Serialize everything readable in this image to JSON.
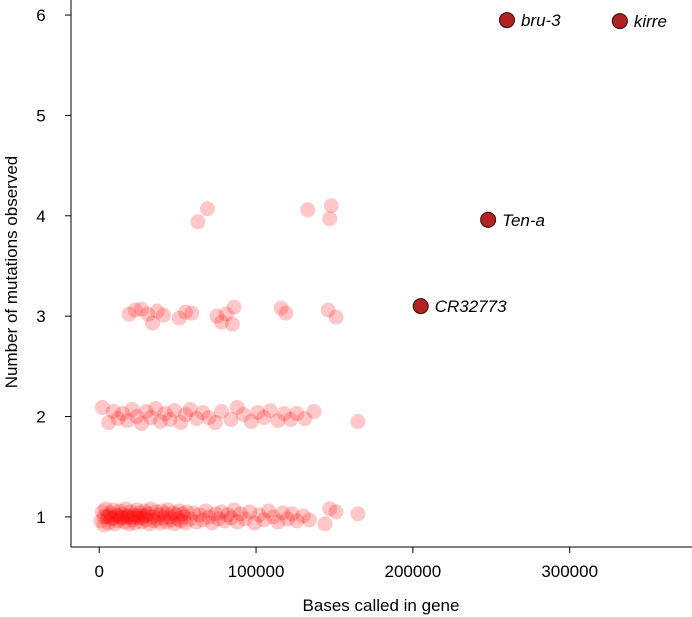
{
  "chart_data": {
    "type": "scatter",
    "title": "",
    "xlabel": "Bases called in gene",
    "ylabel": "Number of mutations observed",
    "xlim": [
      -18000,
      378000
    ],
    "ylim": [
      0.7,
      6.15
    ],
    "xticks": [
      0,
      100000,
      200000,
      300000
    ],
    "yticks": [
      1,
      2,
      3,
      4,
      5,
      6
    ],
    "grid": false,
    "background_color": "#FF0000",
    "highlight_color": "#B22222",
    "background_points": [
      {
        "x": 63000,
        "y": 3.94
      },
      {
        "x": 69000,
        "y": 4.07
      },
      {
        "x": 133000,
        "y": 4.06
      },
      {
        "x": 147000,
        "y": 3.97
      },
      {
        "x": 148000,
        "y": 4.1
      },
      {
        "x": 19000,
        "y": 3.02
      },
      {
        "x": 23000,
        "y": 3.06
      },
      {
        "x": 27000,
        "y": 3.07
      },
      {
        "x": 31000,
        "y": 3.02
      },
      {
        "x": 34000,
        "y": 2.93
      },
      {
        "x": 37000,
        "y": 3.05
      },
      {
        "x": 41000,
        "y": 3.01
      },
      {
        "x": 51000,
        "y": 2.98
      },
      {
        "x": 55000,
        "y": 3.04
      },
      {
        "x": 59000,
        "y": 3.03
      },
      {
        "x": 75000,
        "y": 3.0
      },
      {
        "x": 78000,
        "y": 2.94
      },
      {
        "x": 81000,
        "y": 3.02
      },
      {
        "x": 85000,
        "y": 2.92
      },
      {
        "x": 86000,
        "y": 3.09
      },
      {
        "x": 116000,
        "y": 3.08
      },
      {
        "x": 119000,
        "y": 3.03
      },
      {
        "x": 146000,
        "y": 3.06
      },
      {
        "x": 151000,
        "y": 2.99
      },
      {
        "x": 2000,
        "y": 2.09
      },
      {
        "x": 6000,
        "y": 1.94
      },
      {
        "x": 9000,
        "y": 2.05
      },
      {
        "x": 12000,
        "y": 1.98
      },
      {
        "x": 15000,
        "y": 2.03
      },
      {
        "x": 18000,
        "y": 1.96
      },
      {
        "x": 21000,
        "y": 2.07
      },
      {
        "x": 24000,
        "y": 2.0
      },
      {
        "x": 27000,
        "y": 1.93
      },
      {
        "x": 30000,
        "y": 2.05
      },
      {
        "x": 33000,
        "y": 1.99
      },
      {
        "x": 36000,
        "y": 2.08
      },
      {
        "x": 39000,
        "y": 1.95
      },
      {
        "x": 42000,
        "y": 2.03
      },
      {
        "x": 45000,
        "y": 1.97
      },
      {
        "x": 48000,
        "y": 2.06
      },
      {
        "x": 52000,
        "y": 1.94
      },
      {
        "x": 55000,
        "y": 2.02
      },
      {
        "x": 58000,
        "y": 2.07
      },
      {
        "x": 62000,
        "y": 1.98
      },
      {
        "x": 66000,
        "y": 2.04
      },
      {
        "x": 70000,
        "y": 1.99
      },
      {
        "x": 74000,
        "y": 1.94
      },
      {
        "x": 78000,
        "y": 2.05
      },
      {
        "x": 84000,
        "y": 1.97
      },
      {
        "x": 88000,
        "y": 2.09
      },
      {
        "x": 92000,
        "y": 2.02
      },
      {
        "x": 97000,
        "y": 1.95
      },
      {
        "x": 101000,
        "y": 2.04
      },
      {
        "x": 105000,
        "y": 1.99
      },
      {
        "x": 109000,
        "y": 2.06
      },
      {
        "x": 114000,
        "y": 1.96
      },
      {
        "x": 118000,
        "y": 2.03
      },
      {
        "x": 122000,
        "y": 1.97
      },
      {
        "x": 126000,
        "y": 2.03
      },
      {
        "x": 131000,
        "y": 1.98
      },
      {
        "x": 137000,
        "y": 2.05
      },
      {
        "x": 165000,
        "y": 1.95
      },
      {
        "x": 1000,
        "y": 0.96
      },
      {
        "x": 2000,
        "y": 1.05
      },
      {
        "x": 3000,
        "y": 0.92
      },
      {
        "x": 4000,
        "y": 1.08
      },
      {
        "x": 5000,
        "y": 1.0
      },
      {
        "x": 6000,
        "y": 0.94
      },
      {
        "x": 7000,
        "y": 1.04
      },
      {
        "x": 8000,
        "y": 0.98
      },
      {
        "x": 9000,
        "y": 1.07
      },
      {
        "x": 10000,
        "y": 0.93
      },
      {
        "x": 11000,
        "y": 1.02
      },
      {
        "x": 12000,
        "y": 0.96
      },
      {
        "x": 13000,
        "y": 1.06
      },
      {
        "x": 14000,
        "y": 0.99
      },
      {
        "x": 15000,
        "y": 1.03
      },
      {
        "x": 16000,
        "y": 0.95
      },
      {
        "x": 17000,
        "y": 1.08
      },
      {
        "x": 18000,
        "y": 1.0
      },
      {
        "x": 19000,
        "y": 0.93
      },
      {
        "x": 20000,
        "y": 1.05
      },
      {
        "x": 21000,
        "y": 0.97
      },
      {
        "x": 22000,
        "y": 1.02
      },
      {
        "x": 23000,
        "y": 0.94
      },
      {
        "x": 24000,
        "y": 1.07
      },
      {
        "x": 25000,
        "y": 0.99
      },
      {
        "x": 26000,
        "y": 1.04
      },
      {
        "x": 27000,
        "y": 0.95
      },
      {
        "x": 28000,
        "y": 1.01
      },
      {
        "x": 29000,
        "y": 1.06
      },
      {
        "x": 30000,
        "y": 0.97
      },
      {
        "x": 31000,
        "y": 1.03
      },
      {
        "x": 32000,
        "y": 0.93
      },
      {
        "x": 33000,
        "y": 1.08
      },
      {
        "x": 34000,
        "y": 1.0
      },
      {
        "x": 35000,
        "y": 0.96
      },
      {
        "x": 36000,
        "y": 1.05
      },
      {
        "x": 37000,
        "y": 0.98
      },
      {
        "x": 38000,
        "y": 1.02
      },
      {
        "x": 39000,
        "y": 0.94
      },
      {
        "x": 40000,
        "y": 1.06
      },
      {
        "x": 41000,
        "y": 0.99
      },
      {
        "x": 42000,
        "y": 1.03
      },
      {
        "x": 43000,
        "y": 0.95
      },
      {
        "x": 44000,
        "y": 1.07
      },
      {
        "x": 45000,
        "y": 1.0
      },
      {
        "x": 46000,
        "y": 0.97
      },
      {
        "x": 47000,
        "y": 1.04
      },
      {
        "x": 48000,
        "y": 0.93
      },
      {
        "x": 49000,
        "y": 1.02
      },
      {
        "x": 50000,
        "y": 0.98
      },
      {
        "x": 51000,
        "y": 1.06
      },
      {
        "x": 52000,
        "y": 0.96
      },
      {
        "x": 53000,
        "y": 1.03
      },
      {
        "x": 54000,
        "y": 1.0
      },
      {
        "x": 55000,
        "y": 0.94
      },
      {
        "x": 56000,
        "y": 1.05
      },
      {
        "x": 58000,
        "y": 0.98
      },
      {
        "x": 60000,
        "y": 1.04
      },
      {
        "x": 62000,
        "y": 0.95
      },
      {
        "x": 64000,
        "y": 1.02
      },
      {
        "x": 66000,
        "y": 0.97
      },
      {
        "x": 68000,
        "y": 1.06
      },
      {
        "x": 70000,
        "y": 1.0
      },
      {
        "x": 72000,
        "y": 0.94
      },
      {
        "x": 74000,
        "y": 1.03
      },
      {
        "x": 76000,
        "y": 0.98
      },
      {
        "x": 78000,
        "y": 1.05
      },
      {
        "x": 80000,
        "y": 0.96
      },
      {
        "x": 82000,
        "y": 1.02
      },
      {
        "x": 84000,
        "y": 0.99
      },
      {
        "x": 86000,
        "y": 1.07
      },
      {
        "x": 88000,
        "y": 0.95
      },
      {
        "x": 90000,
        "y": 1.03
      },
      {
        "x": 93000,
        "y": 0.98
      },
      {
        "x": 96000,
        "y": 1.05
      },
      {
        "x": 99000,
        "y": 0.94
      },
      {
        "x": 102000,
        "y": 1.02
      },
      {
        "x": 105000,
        "y": 0.97
      },
      {
        "x": 108000,
        "y": 1.06
      },
      {
        "x": 111000,
        "y": 1.0
      },
      {
        "x": 114000,
        "y": 0.95
      },
      {
        "x": 117000,
        "y": 1.04
      },
      {
        "x": 120000,
        "y": 0.98
      },
      {
        "x": 123000,
        "y": 1.03
      },
      {
        "x": 126000,
        "y": 0.96
      },
      {
        "x": 130000,
        "y": 1.01
      },
      {
        "x": 134000,
        "y": 0.97
      },
      {
        "x": 144000,
        "y": 0.93
      },
      {
        "x": 147000,
        "y": 1.08
      },
      {
        "x": 151000,
        "y": 1.05
      },
      {
        "x": 165000,
        "y": 1.03
      },
      {
        "x": 3000,
        "y": 1.0
      },
      {
        "x": 6000,
        "y": 1.01
      },
      {
        "x": 9000,
        "y": 0.99
      },
      {
        "x": 12000,
        "y": 1.01
      },
      {
        "x": 15000,
        "y": 0.99
      },
      {
        "x": 18000,
        "y": 1.01
      },
      {
        "x": 21000,
        "y": 0.99
      },
      {
        "x": 24000,
        "y": 1.01
      },
      {
        "x": 27000,
        "y": 0.99
      },
      {
        "x": 30000,
        "y": 1.01
      }
    ],
    "highlighted_points": [
      {
        "name": "bru-3",
        "x": 260000,
        "y": 5.95
      },
      {
        "name": "kirre",
        "x": 332000,
        "y": 5.94
      },
      {
        "name": "Ten-a",
        "x": 248000,
        "y": 3.96
      },
      {
        "name": "CR32773",
        "x": 205000,
        "y": 3.1
      }
    ]
  }
}
